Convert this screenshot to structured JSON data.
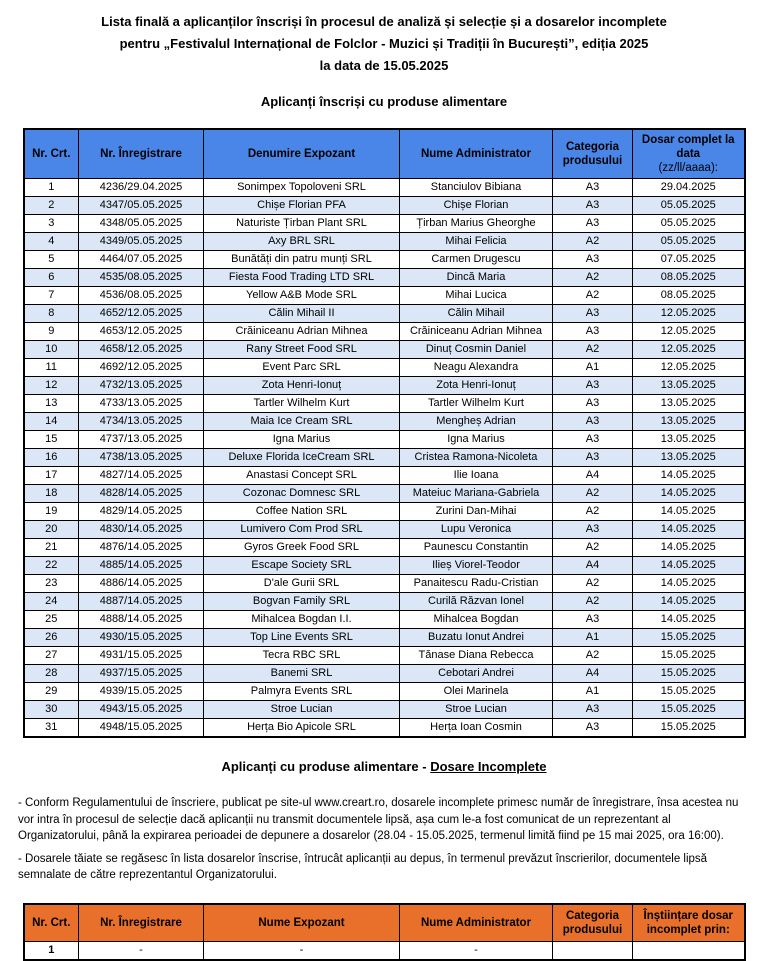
{
  "colors": {
    "header_blue": "#4a86e8",
    "stripe_blue": "#dbe7f6",
    "header_orange": "#e8702a",
    "border": "#000000"
  },
  "title": {
    "line1": "Lista finală a aplicanților înscriși în procesul de analiză și selecție și a dosarelor incomplete",
    "line2": "pentru „Festivalul Internațional de Folclor - Muzici și Tradiții în București”, ediția 2025",
    "line3": "la data de 15.05.2025"
  },
  "section1": {
    "heading": "Aplicanți înscriși cu produse alimentare"
  },
  "table1": {
    "headers": [
      {
        "label": "Nr. Crt."
      },
      {
        "label": "Nr. Înregistrare"
      },
      {
        "label": "Denumire Expozant"
      },
      {
        "label": "Nume Administrator"
      },
      {
        "label": "Categoria produsului"
      },
      {
        "label": "Dosar complet la data",
        "sub": "(zz/ll/aaaa):"
      }
    ],
    "rows": [
      [
        "1",
        "4236/29.04.2025",
        "Sonimpex Topoloveni SRL",
        "Stanciulov Bibiana",
        "A3",
        "29.04.2025"
      ],
      [
        "2",
        "4347/05.05.2025",
        "Chișe Florian PFA",
        "Chișe Florian",
        "A3",
        "05.05.2025"
      ],
      [
        "3",
        "4348/05.05.2025",
        "Naturiste Țirban Plant SRL",
        "Țirban Marius Gheorghe",
        "A3",
        "05.05.2025"
      ],
      [
        "4",
        "4349/05.05.2025",
        "Axy BRL SRL",
        "Mihai Felicia",
        "A2",
        "05.05.2025"
      ],
      [
        "5",
        "4464/07.05.2025",
        "Bunătăți din patru munți SRL",
        "Carmen Drugescu",
        "A3",
        "07.05.2025"
      ],
      [
        "6",
        "4535/08.05.2025",
        "Fiesta Food Trading LTD SRL",
        "Dincă Maria",
        "A2",
        "08.05.2025"
      ],
      [
        "7",
        "4536/08.05.2025",
        "Yellow A&B Mode SRL",
        "Mihai Lucica",
        "A2",
        "08.05.2025"
      ],
      [
        "8",
        "4652/12.05.2025",
        "Călin Mihail II",
        "Călin Mihail",
        "A3",
        "12.05.2025"
      ],
      [
        "9",
        "4653/12.05.2025",
        "Crăiniceanu Adrian Mihnea",
        "Crăiniceanu Adrian Mihnea",
        "A3",
        "12.05.2025"
      ],
      [
        "10",
        "4658/12.05.2025",
        "Rany Street Food SRL",
        "Dinuț Cosmin Daniel",
        "A2",
        "12.05.2025"
      ],
      [
        "11",
        "4692/12.05.2025",
        "Event Parc SRL",
        "Neagu Alexandra",
        "A1",
        "12.05.2025"
      ],
      [
        "12",
        "4732/13.05.2025",
        "Zota Henri-Ionuț",
        "Zota Henri-Ionuț",
        "A3",
        "13.05.2025"
      ],
      [
        "13",
        "4733/13.05.2025",
        "Tartler Wilhelm Kurt",
        "Tartler Wilhelm Kurt",
        "A3",
        "13.05.2025"
      ],
      [
        "14",
        "4734/13.05.2025",
        "Maia Ice Cream SRL",
        "Mengheș Adrian",
        "A3",
        "13.05.2025"
      ],
      [
        "15",
        "4737/13.05.2025",
        "Igna Marius",
        "Igna Marius",
        "A3",
        "13.05.2025"
      ],
      [
        "16",
        "4738/13.05.2025",
        "Deluxe Florida IceCream SRL",
        "Cristea Ramona-Nicoleta",
        "A3",
        "13.05.2025"
      ],
      [
        "17",
        "4827/14.05.2025",
        "Anastasi Concept SRL",
        "Ilie Ioana",
        "A4",
        "14.05.2025"
      ],
      [
        "18",
        "4828/14.05.2025",
        "Cozonac Domnesc SRL",
        "Mateiuc Mariana-Gabriela",
        "A2",
        "14.05.2025"
      ],
      [
        "19",
        "4829/14.05.2025",
        "Coffee Nation SRL",
        "Zurini Dan-Mihai",
        "A2",
        "14.05.2025"
      ],
      [
        "20",
        "4830/14.05.2025",
        "Lumivero Com Prod SRL",
        "Lupu Veronica",
        "A3",
        "14.05.2025"
      ],
      [
        "21",
        "4876/14.05.2025",
        "Gyros Greek Food SRL",
        "Paunescu Constantin",
        "A2",
        "14.05.2025"
      ],
      [
        "22",
        "4885/14.05.2025",
        "Escape Society SRL",
        "Ilieș Viorel-Teodor",
        "A4",
        "14.05.2025"
      ],
      [
        "23",
        "4886/14.05.2025",
        "D'ale Gurii SRL",
        "Panaitescu Radu-Cristian",
        "A2",
        "14.05.2025"
      ],
      [
        "24",
        "4887/14.05.2025",
        "Bogvan Family SRL",
        "Curilă Răzvan Ionel",
        "A2",
        "14.05.2025"
      ],
      [
        "25",
        "4888/14.05.2025",
        "Mihalcea Bogdan I.I.",
        "Mihalcea Bogdan",
        "A3",
        "14.05.2025"
      ],
      [
        "26",
        "4930/15.05.2025",
        "Top Line Events SRL",
        "Buzatu Ionut Andrei",
        "A1",
        "15.05.2025"
      ],
      [
        "27",
        "4931/15.05.2025",
        "Tecra RBC SRL",
        "Tănase Diana Rebecca",
        "A2",
        "15.05.2025"
      ],
      [
        "28",
        "4937/15.05.2025",
        "Banemi SRL",
        "Cebotari Andrei",
        "A4",
        "15.05.2025"
      ],
      [
        "29",
        "4939/15.05.2025",
        "Palmyra Events SRL",
        "Olei Marinela",
        "A1",
        "15.05.2025"
      ],
      [
        "30",
        "4943/15.05.2025",
        "Stroe Lucian",
        "Stroe Lucian",
        "A3",
        "15.05.2025"
      ],
      [
        "31",
        "4948/15.05.2025",
        "Herța Bio Apicole SRL",
        "Herța Ioan Cosmin",
        "A3",
        "15.05.2025"
      ]
    ]
  },
  "section2": {
    "heading_prefix": "Aplicanți cu produse alimentare - ",
    "heading_underlined": "Dosare Incomplete"
  },
  "notes": [
    "- Conform Regulamentului de înscriere, publicat pe site-ul www.creart.ro, dosarele incomplete primesc număr de înregistrare, însa acestea nu vor intra în procesul de selecție dacă aplicanții nu transmit documentele lipsă, așa cum le-a fost comunicat de un reprezentant al Organizatorului, până la expirarea perioadei de depunere a dosarelor (28.04 - 15.05.2025, termenul limită fiind pe 15 mai 2025, ora 16:00).",
    "- Dosarele tăiate se regăsesc în lista dosarelor înscrise, întrucât aplicanții au depus, în termenul prevăzut înscrierilor, documentele lipsă semnalate de către reprezentantul Organizatorului."
  ],
  "table2": {
    "headers": [
      {
        "label": "Nr. Crt."
      },
      {
        "label": "Nr. Înregistrare"
      },
      {
        "label": "Nume Expozant"
      },
      {
        "label": "Nume Administrator"
      },
      {
        "label": "Categoria produsului"
      },
      {
        "label": "Înștiințare dosar incomplet prin:"
      }
    ],
    "rows": [
      [
        "1",
        "-",
        "-",
        "-",
        "",
        ""
      ]
    ]
  }
}
